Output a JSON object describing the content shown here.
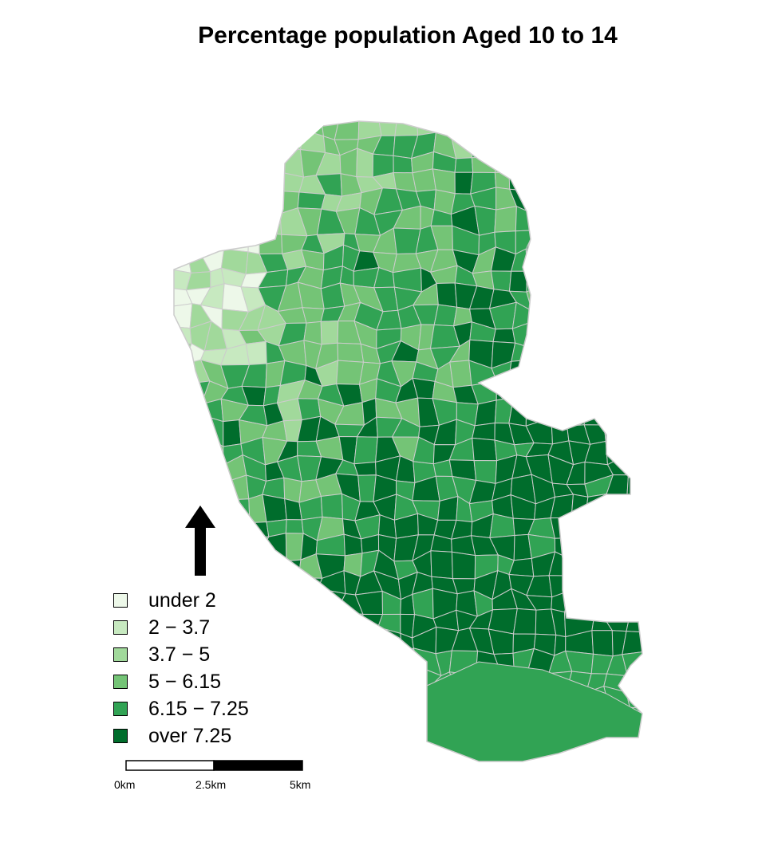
{
  "title": "Percentage population Aged 10 to 14",
  "legend": {
    "items": [
      {
        "label": "under 2",
        "color": "#edf8e9"
      },
      {
        "label": "2 − 3.7",
        "color": "#c7e9c0"
      },
      {
        "label": "3.7 − 5",
        "color": "#a1d99b"
      },
      {
        "label": "5 − 6.15",
        "color": "#74c476"
      },
      {
        "label": "6.15 − 7.25",
        "color": "#31a354"
      },
      {
        "label": "over 7.25",
        "color": "#006d2c"
      }
    ]
  },
  "scale_bar": {
    "labels": [
      "0km",
      "2.5km",
      "5km"
    ]
  },
  "colors": {
    "boundary": "#cccccc",
    "north_arrow": "#000000"
  }
}
